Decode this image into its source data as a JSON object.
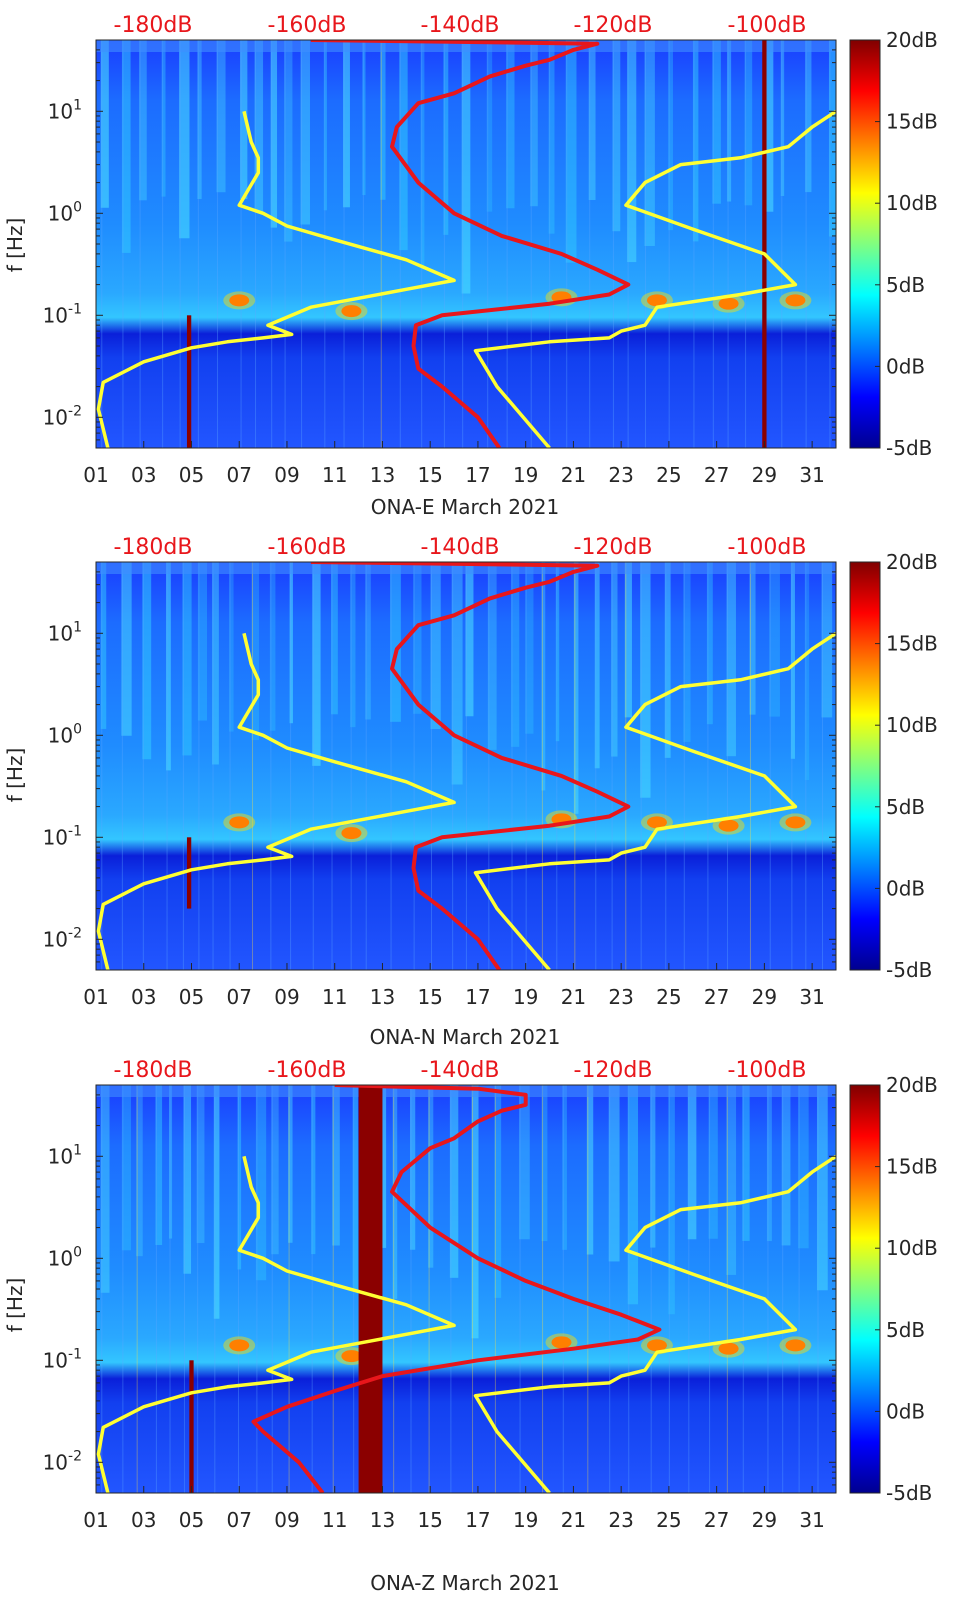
{
  "colors": {
    "colormap": [
      "#00008f",
      "#0000ff",
      "#0080ff",
      "#00ffff",
      "#80ff80",
      "#ffff00",
      "#ff8000",
      "#ff0000",
      "#800000"
    ],
    "yellow_curve": "#ffff33",
    "red_curve": "#e8161b",
    "db_label": "#e8161b"
  },
  "chart_data": [
    {
      "type": "heatmap",
      "id": "E",
      "xlabel": "ONA-E March 2021",
      "ylabel": "f [Hz]",
      "x_ticks": [
        "01",
        "03",
        "05",
        "07",
        "09",
        "11",
        "13",
        "15",
        "17",
        "19",
        "21",
        "23",
        "25",
        "27",
        "29",
        "31"
      ],
      "y_ticks": [
        {
          "value": 0.01,
          "base": "10",
          "exp": "-2"
        },
        {
          "value": 0.1,
          "base": "10",
          "exp": "-1"
        },
        {
          "value": 1,
          "base": "10",
          "exp": "0"
        },
        {
          "value": 10,
          "base": "10",
          "exp": "1"
        }
      ],
      "ylim": [
        0.005,
        50
      ],
      "xlim": [
        1,
        32
      ],
      "top_db_labels": [
        "-180dB",
        "-160dB",
        "-140dB",
        "-120dB",
        "-100dB"
      ],
      "colorbar": {
        "ticks": [
          "20dB",
          "15dB",
          "10dB",
          "5dB",
          "0dB",
          "-5dB"
        ],
        "range": [
          -5,
          20
        ]
      },
      "microseism_peaks": [
        {
          "day": 7.0,
          "f": 0.14
        },
        {
          "day": 11.7,
          "f": 0.11
        },
        {
          "day": 20.5,
          "f": 0.15
        },
        {
          "day": 24.5,
          "f": 0.14
        },
        {
          "day": 27.5,
          "f": 0.13
        },
        {
          "day": 30.3,
          "f": 0.14
        }
      ],
      "hot_columns": [
        {
          "day": 4.9,
          "fmin": 0.005,
          "fmax": 0.1
        },
        {
          "day": 29.0,
          "fmin": 0.005,
          "fmax": 50
        }
      ],
      "series": [
        {
          "name": "yellow",
          "points": [
            [
              1.5,
              0.005
            ],
            [
              1.1,
              0.012
            ],
            [
              1.3,
              0.022
            ],
            [
              3,
              0.035
            ],
            [
              5,
              0.048
            ],
            [
              6.5,
              0.055
            ],
            [
              8,
              0.06
            ],
            [
              9.2,
              0.065
            ],
            [
              8.2,
              0.08
            ],
            [
              10,
              0.12
            ],
            [
              14,
              0.18
            ],
            [
              16,
              0.22
            ],
            [
              14,
              0.35
            ],
            [
              11,
              0.55
            ],
            [
              9,
              0.75
            ],
            [
              8,
              1.0
            ],
            [
              7,
              1.2
            ],
            [
              7.8,
              2.5
            ],
            [
              7.8,
              3.5
            ],
            [
              7.5,
              5
            ],
            [
              7.2,
              10
            ]
          ]
        },
        {
          "name": "yellow",
          "points": [
            [
              20,
              0.005
            ],
            [
              17.8,
              0.02
            ],
            [
              16.9,
              0.045
            ],
            [
              20,
              0.055
            ],
            [
              22.5,
              0.06
            ],
            [
              23,
              0.07
            ],
            [
              24,
              0.08
            ],
            [
              24.5,
              0.12
            ],
            [
              28,
              0.16
            ],
            [
              30.3,
              0.2
            ],
            [
              29,
              0.4
            ],
            [
              26,
              0.7
            ],
            [
              23.2,
              1.2
            ],
            [
              24,
              2
            ],
            [
              25.5,
              3
            ],
            [
              28,
              3.5
            ],
            [
              30,
              4.5
            ],
            [
              31,
              7
            ],
            [
              32,
              10
            ]
          ]
        },
        {
          "name": "red",
          "points": [
            [
              17.9,
              0.005
            ],
            [
              17,
              0.01
            ],
            [
              15.5,
              0.02
            ],
            [
              14.5,
              0.03
            ],
            [
              14.3,
              0.05
            ],
            [
              14.4,
              0.08
            ],
            [
              15.5,
              0.1
            ],
            [
              20,
              0.13
            ],
            [
              22.5,
              0.16
            ],
            [
              23.3,
              0.2
            ],
            [
              22,
              0.28
            ],
            [
              20.5,
              0.4
            ],
            [
              18,
              0.6
            ],
            [
              16,
              1
            ],
            [
              14.5,
              2
            ],
            [
              13.4,
              4.5
            ],
            [
              13.6,
              7
            ],
            [
              14.5,
              12
            ],
            [
              16,
              15
            ],
            [
              17.5,
              22
            ],
            [
              19,
              28
            ],
            [
              20,
              32
            ],
            [
              21,
              40
            ],
            [
              22,
              46
            ],
            [
              10,
              50
            ]
          ]
        }
      ]
    },
    {
      "type": "heatmap",
      "id": "N",
      "xlabel": "ONA-N March 2021",
      "ylabel": "f [Hz]",
      "x_ticks": [
        "01",
        "03",
        "05",
        "07",
        "09",
        "11",
        "13",
        "15",
        "17",
        "19",
        "21",
        "23",
        "25",
        "27",
        "29",
        "31"
      ],
      "y_ticks": [
        {
          "value": 0.01,
          "base": "10",
          "exp": "-2"
        },
        {
          "value": 0.1,
          "base": "10",
          "exp": "-1"
        },
        {
          "value": 1,
          "base": "10",
          "exp": "0"
        },
        {
          "value": 10,
          "base": "10",
          "exp": "1"
        }
      ],
      "ylim": [
        0.005,
        50
      ],
      "xlim": [
        1,
        32
      ],
      "top_db_labels": [
        "-180dB",
        "-160dB",
        "-140dB",
        "-120dB",
        "-100dB"
      ],
      "colorbar": {
        "ticks": [
          "20dB",
          "15dB",
          "10dB",
          "5dB",
          "0dB",
          "-5dB"
        ],
        "range": [
          -5,
          20
        ]
      },
      "microseism_peaks": [
        {
          "day": 7.0,
          "f": 0.14
        },
        {
          "day": 11.7,
          "f": 0.11
        },
        {
          "day": 20.5,
          "f": 0.15
        },
        {
          "day": 24.5,
          "f": 0.14
        },
        {
          "day": 27.5,
          "f": 0.13
        },
        {
          "day": 30.3,
          "f": 0.14
        }
      ],
      "hot_columns": [
        {
          "day": 4.9,
          "fmin": 0.02,
          "fmax": 0.1
        }
      ],
      "series": [
        {
          "name": "yellow",
          "points": [
            [
              1.5,
              0.005
            ],
            [
              1.1,
              0.012
            ],
            [
              1.3,
              0.022
            ],
            [
              3,
              0.035
            ],
            [
              5,
              0.048
            ],
            [
              6.5,
              0.055
            ],
            [
              8,
              0.06
            ],
            [
              9.2,
              0.065
            ],
            [
              8.2,
              0.08
            ],
            [
              10,
              0.12
            ],
            [
              14,
              0.18
            ],
            [
              16,
              0.22
            ],
            [
              14,
              0.35
            ],
            [
              11,
              0.55
            ],
            [
              9,
              0.75
            ],
            [
              8,
              1.0
            ],
            [
              7,
              1.2
            ],
            [
              7.8,
              2.5
            ],
            [
              7.8,
              3.5
            ],
            [
              7.5,
              5
            ],
            [
              7.2,
              10
            ]
          ]
        },
        {
          "name": "yellow",
          "points": [
            [
              20,
              0.005
            ],
            [
              17.8,
              0.02
            ],
            [
              16.9,
              0.045
            ],
            [
              20,
              0.055
            ],
            [
              22.5,
              0.06
            ],
            [
              23,
              0.07
            ],
            [
              24,
              0.08
            ],
            [
              24.5,
              0.12
            ],
            [
              28,
              0.16
            ],
            [
              30.3,
              0.2
            ],
            [
              29,
              0.4
            ],
            [
              26,
              0.7
            ],
            [
              23.2,
              1.2
            ],
            [
              24,
              2
            ],
            [
              25.5,
              3
            ],
            [
              28,
              3.5
            ],
            [
              30,
              4.5
            ],
            [
              31,
              7
            ],
            [
              32,
              10
            ]
          ]
        },
        {
          "name": "red",
          "points": [
            [
              17.9,
              0.005
            ],
            [
              17,
              0.01
            ],
            [
              15.5,
              0.02
            ],
            [
              14.5,
              0.03
            ],
            [
              14.3,
              0.05
            ],
            [
              14.4,
              0.08
            ],
            [
              15.5,
              0.1
            ],
            [
              20,
              0.13
            ],
            [
              22.5,
              0.16
            ],
            [
              23.3,
              0.2
            ],
            [
              22,
              0.28
            ],
            [
              20.5,
              0.4
            ],
            [
              18,
              0.6
            ],
            [
              16,
              1
            ],
            [
              14.5,
              2
            ],
            [
              13.4,
              4.5
            ],
            [
              13.6,
              7
            ],
            [
              14.5,
              12
            ],
            [
              16,
              15
            ],
            [
              17.5,
              22
            ],
            [
              19,
              28
            ],
            [
              20,
              32
            ],
            [
              21,
              40
            ],
            [
              22,
              46
            ],
            [
              10,
              50
            ]
          ]
        }
      ]
    },
    {
      "type": "heatmap",
      "id": "Z",
      "xlabel": "ONA-Z March 2021",
      "ylabel": "f [Hz]",
      "x_ticks": [
        "01",
        "03",
        "05",
        "07",
        "09",
        "11",
        "13",
        "15",
        "17",
        "19",
        "21",
        "23",
        "25",
        "27",
        "29",
        "31"
      ],
      "y_ticks": [
        {
          "value": 0.01,
          "base": "10",
          "exp": "-2"
        },
        {
          "value": 0.1,
          "base": "10",
          "exp": "-1"
        },
        {
          "value": 1,
          "base": "10",
          "exp": "0"
        },
        {
          "value": 10,
          "base": "10",
          "exp": "1"
        }
      ],
      "ylim": [
        0.005,
        50
      ],
      "xlim": [
        1,
        32
      ],
      "top_db_labels": [
        "-180dB",
        "-160dB",
        "-140dB",
        "-120dB",
        "-100dB"
      ],
      "colorbar": {
        "ticks": [
          "20dB",
          "15dB",
          "10dB",
          "5dB",
          "0dB",
          "-5dB"
        ],
        "range": [
          -5,
          20
        ]
      },
      "microseism_peaks": [
        {
          "day": 7.0,
          "f": 0.14
        },
        {
          "day": 11.7,
          "f": 0.11
        },
        {
          "day": 20.5,
          "f": 0.15
        },
        {
          "day": 24.5,
          "f": 0.14
        },
        {
          "day": 27.5,
          "f": 0.13
        },
        {
          "day": 30.3,
          "f": 0.14
        }
      ],
      "hot_columns": [
        {
          "day": 5.0,
          "fmin": 0.005,
          "fmax": 0.1
        },
        {
          "day": 12.5,
          "fmin": 0.005,
          "fmax": 50,
          "width_days": 1.0
        }
      ],
      "series": [
        {
          "name": "yellow",
          "points": [
            [
              1.5,
              0.005
            ],
            [
              1.1,
              0.012
            ],
            [
              1.3,
              0.022
            ],
            [
              3,
              0.035
            ],
            [
              5,
              0.048
            ],
            [
              6.5,
              0.055
            ],
            [
              8,
              0.06
            ],
            [
              9.2,
              0.065
            ],
            [
              8.2,
              0.08
            ],
            [
              10,
              0.12
            ],
            [
              14,
              0.18
            ],
            [
              16,
              0.22
            ],
            [
              14,
              0.35
            ],
            [
              11,
              0.55
            ],
            [
              9,
              0.75
            ],
            [
              8,
              1.0
            ],
            [
              7,
              1.2
            ],
            [
              7.8,
              2.5
            ],
            [
              7.8,
              3.5
            ],
            [
              7.5,
              5
            ],
            [
              7.2,
              10
            ]
          ]
        },
        {
          "name": "yellow",
          "points": [
            [
              20,
              0.005
            ],
            [
              17.8,
              0.02
            ],
            [
              16.9,
              0.045
            ],
            [
              20,
              0.055
            ],
            [
              22.5,
              0.06
            ],
            [
              23,
              0.07
            ],
            [
              24,
              0.08
            ],
            [
              24.5,
              0.12
            ],
            [
              28,
              0.16
            ],
            [
              30.3,
              0.2
            ],
            [
              29,
              0.4
            ],
            [
              26,
              0.7
            ],
            [
              23.2,
              1.2
            ],
            [
              24,
              2
            ],
            [
              25.5,
              3
            ],
            [
              28,
              3.5
            ],
            [
              30,
              4.5
            ],
            [
              31,
              7
            ],
            [
              32,
              10
            ]
          ]
        },
        {
          "name": "red",
          "points": [
            [
              10.5,
              0.005
            ],
            [
              9.5,
              0.01
            ],
            [
              8,
              0.02
            ],
            [
              7.6,
              0.025
            ],
            [
              9,
              0.035
            ],
            [
              11,
              0.05
            ],
            [
              13,
              0.07
            ],
            [
              17,
              0.1
            ],
            [
              21,
              0.13
            ],
            [
              23.7,
              0.16
            ],
            [
              24.6,
              0.2
            ],
            [
              23,
              0.28
            ],
            [
              21,
              0.4
            ],
            [
              19,
              0.6
            ],
            [
              17,
              1
            ],
            [
              15,
              2
            ],
            [
              13.4,
              4.5
            ],
            [
              13.8,
              7
            ],
            [
              15,
              12
            ],
            [
              16,
              15
            ],
            [
              17,
              22
            ],
            [
              18,
              28
            ],
            [
              19,
              32
            ],
            [
              19,
              40
            ],
            [
              17,
              46
            ],
            [
              11,
              50
            ]
          ]
        }
      ]
    }
  ]
}
